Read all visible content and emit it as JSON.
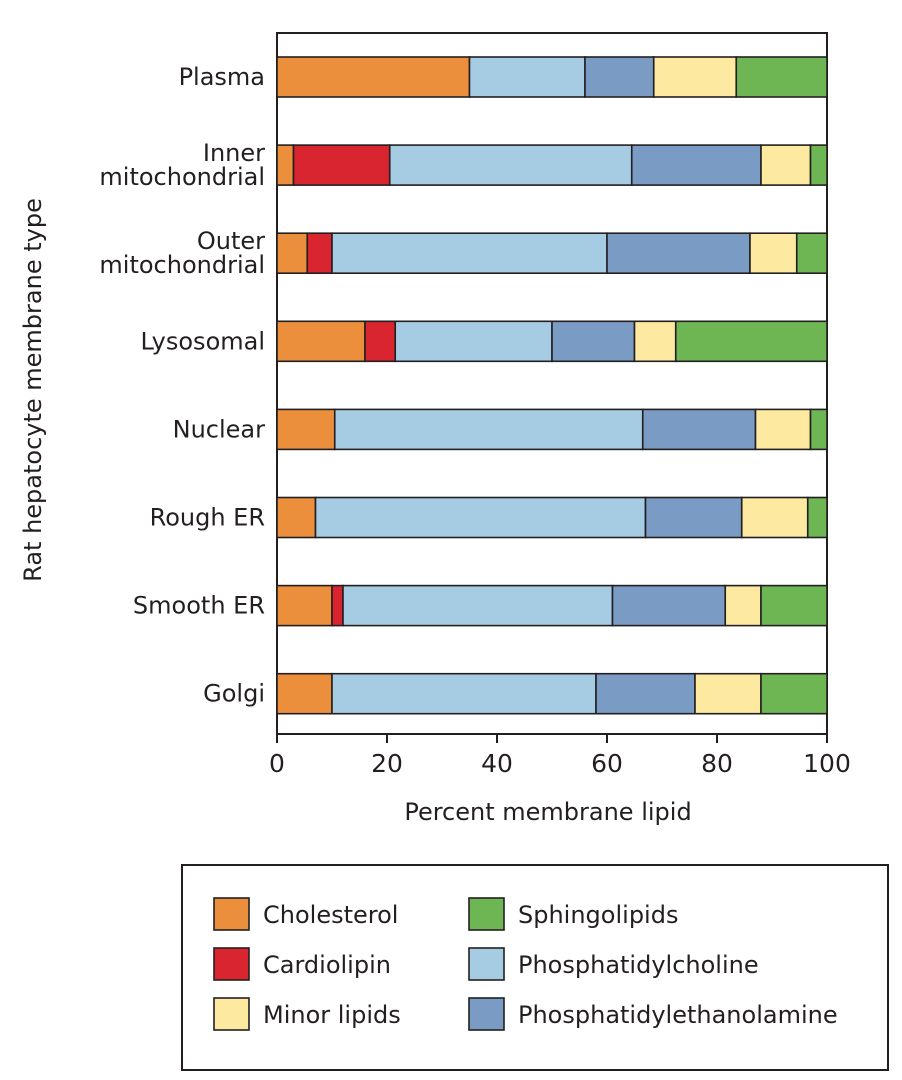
{
  "chart_data": {
    "type": "bar",
    "orientation": "horizontal",
    "stacked": true,
    "title": "",
    "xlabel": "Percent membrane lipid",
    "ylabel": "Rat hepatocyte membrane type",
    "xlim": [
      0,
      100
    ],
    "xticks": [
      "0",
      "20",
      "40",
      "60",
      "80",
      "100"
    ],
    "grid": false,
    "legend_position": "bottom",
    "categories": [
      [
        "Plasma"
      ],
      [
        "Inner",
        "mitochondrial"
      ],
      [
        "Outer",
        "mitochondrial"
      ],
      [
        "Lysosomal"
      ],
      [
        "Nuclear"
      ],
      [
        "Rough ER"
      ],
      [
        "Smooth ER"
      ],
      [
        "Golgi"
      ]
    ],
    "series": [
      {
        "name": "Cholesterol",
        "color": "#ec8f3d",
        "values": [
          35,
          3,
          5.5,
          16,
          10.5,
          7,
          10,
          10
        ]
      },
      {
        "name": "Cardiolipin",
        "color": "#d9252f",
        "values": [
          0,
          17.5,
          4.5,
          5.5,
          0,
          0,
          2,
          0
        ]
      },
      {
        "name": "Phosphatidylcholine",
        "color": "#a6cce4",
        "values": [
          21,
          44,
          50,
          28.5,
          56,
          60,
          49,
          48
        ]
      },
      {
        "name": "Phosphatidylethanolamine",
        "color": "#7a9bc3",
        "values": [
          12.5,
          23.5,
          26,
          15,
          20.5,
          17.5,
          20.5,
          18
        ]
      },
      {
        "name": "Minor lipids",
        "color": "#fde9a0",
        "values": [
          15,
          9,
          8.5,
          7.5,
          10,
          12,
          6.5,
          12
        ]
      },
      {
        "name": "Sphingolipids",
        "color": "#6db653",
        "values": [
          16.5,
          3,
          5.5,
          27.5,
          3,
          3.5,
          12,
          12
        ]
      }
    ],
    "legend_order": [
      "Cholesterol",
      "Sphingolipids",
      "Cardiolipin",
      "Phosphatidylcholine",
      "Minor lipids",
      "Phosphatidylethanolamine"
    ]
  }
}
